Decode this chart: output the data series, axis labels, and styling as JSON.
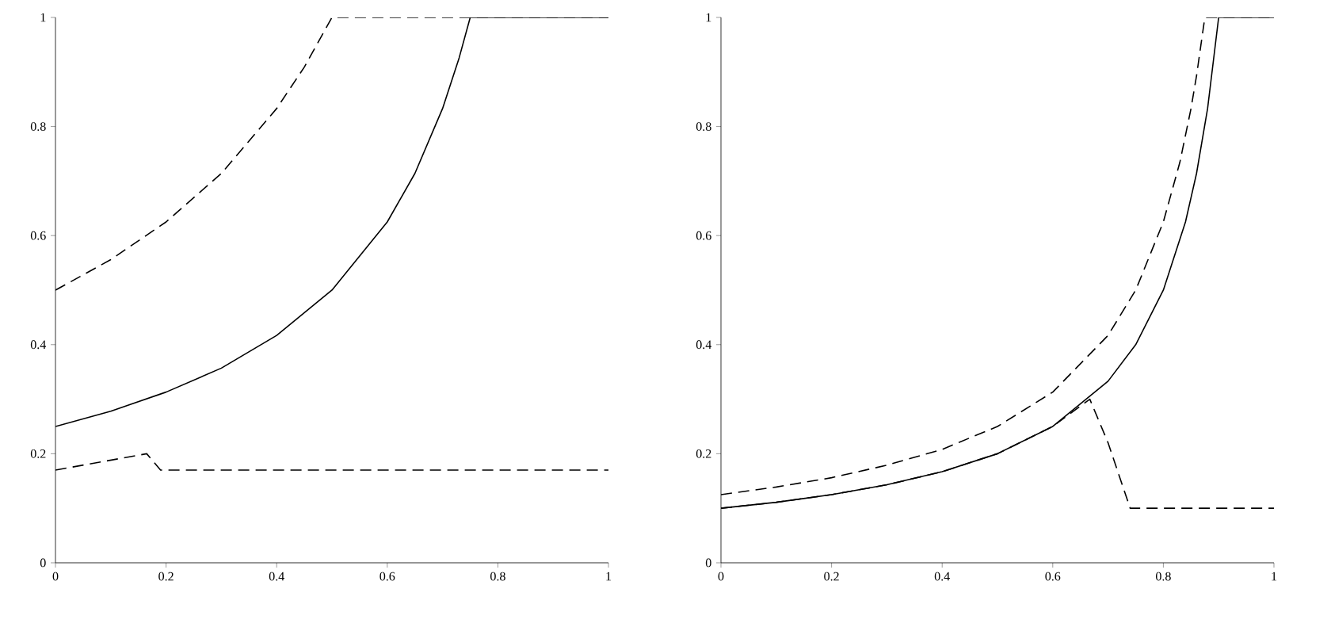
{
  "chart_data": [
    {
      "type": "line",
      "xlim": [
        0,
        1
      ],
      "ylim": [
        0,
        1
      ],
      "xticks": [
        0,
        0.2,
        0.4,
        0.6,
        0.8,
        1
      ],
      "yticks": [
        0,
        0.2,
        0.4,
        0.6,
        0.8,
        1
      ],
      "marker": "none",
      "series": [
        {
          "color": "#000000",
          "line_style": "dashed",
          "x": [
            0,
            0.1,
            0.2,
            0.3,
            0.4,
            0.45,
            0.5,
            1
          ],
          "values": [
            0.5,
            0.556,
            0.625,
            0.714,
            0.833,
            0.909,
            1,
            1
          ]
        },
        {
          "color": "#000000",
          "line_style": "solid",
          "x": [
            0,
            0.1,
            0.2,
            0.3,
            0.4,
            0.5,
            0.6,
            0.65,
            0.7,
            0.73,
            0.75,
            1
          ],
          "values": [
            0.25,
            0.278,
            0.313,
            0.357,
            0.417,
            0.5,
            0.625,
            0.714,
            0.833,
            0.926,
            1,
            1
          ]
        },
        {
          "color": "#000000",
          "line_style": "dashed",
          "x": [
            0,
            0.165,
            0.19,
            1
          ],
          "values": [
            0.17,
            0.2,
            0.17,
            0.17
          ]
        }
      ]
    },
    {
      "type": "line",
      "xlim": [
        0,
        1
      ],
      "ylim": [
        0,
        1
      ],
      "xticks": [
        0,
        0.2,
        0.4,
        0.6,
        0.8,
        1
      ],
      "yticks": [
        0,
        0.2,
        0.4,
        0.6,
        0.8,
        1
      ],
      "marker": "none",
      "series": [
        {
          "color": "#000000",
          "line_style": "dashed",
          "x": [
            0,
            0.1,
            0.2,
            0.3,
            0.4,
            0.5,
            0.6,
            0.7,
            0.75,
            0.8,
            0.83,
            0.85,
            0.86,
            0.875,
            1
          ],
          "values": [
            0.125,
            0.139,
            0.156,
            0.179,
            0.208,
            0.25,
            0.313,
            0.417,
            0.5,
            0.625,
            0.735,
            0.833,
            0.893,
            1,
            1
          ]
        },
        {
          "color": "#000000",
          "line_style": "solid",
          "x": [
            0,
            0.1,
            0.2,
            0.3,
            0.4,
            0.5,
            0.6,
            0.7,
            0.75,
            0.8,
            0.84,
            0.86,
            0.88,
            0.9,
            1
          ],
          "values": [
            0.1,
            0.111,
            0.125,
            0.143,
            0.167,
            0.2,
            0.25,
            0.333,
            0.4,
            0.5,
            0.625,
            0.714,
            0.833,
            1,
            1
          ]
        },
        {
          "color": "#000000",
          "line_style": "dashed",
          "x": [
            0,
            0.1,
            0.2,
            0.3,
            0.4,
            0.5,
            0.6,
            0.667,
            0.7,
            0.74,
            1
          ],
          "values": [
            0.1,
            0.111,
            0.125,
            0.143,
            0.167,
            0.2,
            0.25,
            0.3,
            0.22,
            0.1,
            0.1
          ]
        }
      ]
    }
  ]
}
